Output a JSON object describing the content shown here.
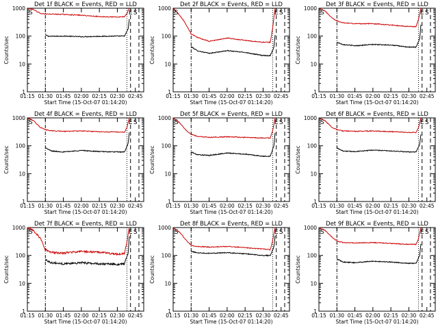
{
  "colors": {
    "events": "#000000",
    "lld": "#cc0000",
    "axes": "#000000",
    "background": "#ffffff"
  },
  "chart_data": [
    {
      "type": "line",
      "title": "Det 1f BLACK = Events, RED = LLD",
      "xlabel": "Start Time (15-Oct-07 01:14:20)",
      "ylabel": "Counts/sec",
      "yscale": "log",
      "ylim": [
        1,
        1000
      ],
      "xlim": [
        "01:15",
        "02:52"
      ],
      "x_ticks": [
        "01:15",
        "01:30",
        "01:45",
        "02:00",
        "02:15",
        "02:30",
        "02:45"
      ],
      "y_ticks": [
        "1",
        "10",
        "100",
        "1000"
      ],
      "markers": [
        {
          "label": "S",
          "x": "01:15"
        },
        {
          "label": "E",
          "x": "02:41"
        },
        {
          "label": "S",
          "x": "02:45"
        }
      ],
      "vlines": [
        {
          "x": "01:30",
          "style": "dash-dot"
        },
        {
          "x": "02:38",
          "style": "dotted"
        },
        {
          "x": "02:41",
          "style": "dashed"
        },
        {
          "x": "02:48",
          "style": "dashed"
        }
      ],
      "series": [
        {
          "name": "Events",
          "color": "#000000",
          "x": [
            "01:30",
            "01:33",
            "01:45",
            "02:00",
            "02:15",
            "02:30",
            "02:36",
            "02:39",
            "02:40"
          ],
          "y": [
            110,
            98,
            100,
            95,
            98,
            100,
            100,
            180,
            400
          ]
        },
        {
          "name": "LLD",
          "color": "#cc0000",
          "x": [
            "01:15",
            "01:20",
            "01:26",
            "01:30",
            "01:45",
            "02:00",
            "02:15",
            "02:30",
            "02:36",
            "02:38",
            "02:40"
          ],
          "y": [
            1000,
            900,
            650,
            620,
            600,
            560,
            500,
            480,
            500,
            650,
            1000
          ]
        }
      ]
    },
    {
      "type": "line",
      "title": "Det 2f BLACK = Events, RED = LLD",
      "xlabel": "Start Time (15-Oct-07 01:14:20)",
      "ylabel": "Counts/sec",
      "yscale": "log",
      "ylim": [
        1,
        1000
      ],
      "xlim": [
        "01:15",
        "02:52"
      ],
      "x_ticks": [
        "01:15",
        "01:30",
        "01:45",
        "02:00",
        "02:15",
        "02:30",
        "02:45"
      ],
      "y_ticks": [
        "1",
        "10",
        "100",
        "1000"
      ],
      "markers": [
        {
          "label": "S",
          "x": "01:15"
        },
        {
          "label": "E",
          "x": "02:41"
        },
        {
          "label": "S",
          "x": "02:45"
        }
      ],
      "vlines": [
        {
          "x": "01:30",
          "style": "dash-dot"
        },
        {
          "x": "02:38",
          "style": "dotted"
        },
        {
          "x": "02:41",
          "style": "dashed"
        },
        {
          "x": "02:48",
          "style": "dashed"
        }
      ],
      "series": [
        {
          "name": "Events",
          "color": "#000000",
          "x": [
            "01:30",
            "01:35",
            "01:45",
            "02:00",
            "02:15",
            "02:30",
            "02:36",
            "02:39",
            "02:40"
          ],
          "y": [
            42,
            30,
            24,
            30,
            26,
            20,
            20,
            40,
            110
          ]
        },
        {
          "name": "LLD",
          "color": "#cc0000",
          "x": [
            "01:15",
            "01:20",
            "01:25",
            "01:30",
            "01:35",
            "01:45",
            "02:00",
            "02:15",
            "02:30",
            "02:36",
            "02:38",
            "02:40"
          ],
          "y": [
            1000,
            600,
            300,
            120,
            90,
            65,
            85,
            70,
            60,
            60,
            200,
            1000
          ]
        }
      ]
    },
    {
      "type": "line",
      "title": "Det 3f BLACK = Events, RED = LLD",
      "xlabel": "Start Time (15-Oct-07 01:14:20)",
      "ylabel": "Counts/sec",
      "yscale": "log",
      "ylim": [
        1,
        1000
      ],
      "xlim": [
        "01:15",
        "02:52"
      ],
      "x_ticks": [
        "01:15",
        "01:30",
        "01:45",
        "02:00",
        "02:15",
        "02:30",
        "02:45"
      ],
      "y_ticks": [
        "1",
        "10",
        "100",
        "1000"
      ],
      "markers": [
        {
          "label": "S",
          "x": "01:15"
        },
        {
          "label": "E",
          "x": "02:41"
        },
        {
          "label": "S",
          "x": "02:45"
        }
      ],
      "vlines": [
        {
          "x": "01:30",
          "style": "dash-dot"
        },
        {
          "x": "02:38",
          "style": "dotted"
        },
        {
          "x": "02:41",
          "style": "dashed"
        },
        {
          "x": "02:48",
          "style": "dashed"
        }
      ],
      "series": [
        {
          "name": "Events",
          "color": "#000000",
          "x": [
            "01:30",
            "01:35",
            "01:45",
            "02:00",
            "02:15",
            "02:30",
            "02:36",
            "02:39",
            "02:40"
          ],
          "y": [
            60,
            50,
            45,
            50,
            48,
            40,
            40,
            80,
            250
          ]
        },
        {
          "name": "LLD",
          "color": "#cc0000",
          "x": [
            "01:15",
            "01:20",
            "01:26",
            "01:30",
            "01:35",
            "01:45",
            "02:00",
            "02:15",
            "02:30",
            "02:36",
            "02:38",
            "02:40"
          ],
          "y": [
            1000,
            800,
            450,
            350,
            300,
            280,
            280,
            250,
            220,
            220,
            400,
            1000
          ]
        }
      ]
    },
    {
      "type": "line",
      "title": "Det 4f BLACK = Events, RED = LLD",
      "xlabel": "Start Time (15-Oct-07 01:14:20)",
      "ylabel": "Counts/sec",
      "yscale": "log",
      "ylim": [
        1,
        1000
      ],
      "xlim": [
        "01:15",
        "02:52"
      ],
      "x_ticks": [
        "01:15",
        "01:30",
        "01:45",
        "02:00",
        "02:15",
        "02:30",
        "02:45"
      ],
      "y_ticks": [
        "1",
        "10",
        "100",
        "1000"
      ],
      "markers": [
        {
          "label": "S",
          "x": "01:15"
        },
        {
          "label": "E",
          "x": "02:41"
        },
        {
          "label": "S",
          "x": "02:45"
        }
      ],
      "vlines": [
        {
          "x": "01:30",
          "style": "dash-dot"
        },
        {
          "x": "02:38",
          "style": "dotted"
        },
        {
          "x": "02:41",
          "style": "dashed"
        },
        {
          "x": "02:48",
          "style": "dashed"
        }
      ],
      "series": [
        {
          "name": "Events",
          "color": "#000000",
          "x": [
            "01:30",
            "01:35",
            "01:45",
            "02:00",
            "02:15",
            "02:30",
            "02:36",
            "02:39",
            "02:40"
          ],
          "y": [
            85,
            65,
            60,
            68,
            62,
            60,
            60,
            120,
            300
          ]
        },
        {
          "name": "LLD",
          "color": "#cc0000",
          "x": [
            "01:15",
            "01:20",
            "01:26",
            "01:30",
            "01:35",
            "01:45",
            "02:00",
            "02:15",
            "02:30",
            "02:36",
            "02:38",
            "02:40"
          ],
          "y": [
            1000,
            800,
            450,
            380,
            340,
            330,
            340,
            320,
            310,
            310,
            450,
            1000
          ]
        }
      ]
    },
    {
      "type": "line",
      "title": "Det 5f BLACK = Events, RED = LLD",
      "xlabel": "Start Time (15-Oct-07 01:14:20)",
      "ylabel": "Counts/sec",
      "yscale": "log",
      "ylim": [
        1,
        1000
      ],
      "xlim": [
        "01:15",
        "02:52"
      ],
      "x_ticks": [
        "01:15",
        "01:30",
        "01:45",
        "02:00",
        "02:15",
        "02:30",
        "02:45"
      ],
      "y_ticks": [
        "1",
        "10",
        "100",
        "1000"
      ],
      "markers": [
        {
          "label": "S",
          "x": "01:15"
        },
        {
          "label": "E",
          "x": "02:41"
        },
        {
          "label": "S",
          "x": "02:45"
        }
      ],
      "vlines": [
        {
          "x": "01:30",
          "style": "dash-dot"
        },
        {
          "x": "02:38",
          "style": "dotted"
        },
        {
          "x": "02:41",
          "style": "dashed"
        },
        {
          "x": "02:48",
          "style": "dashed"
        }
      ],
      "series": [
        {
          "name": "Events",
          "color": "#000000",
          "x": [
            "01:30",
            "01:35",
            "01:45",
            "02:00",
            "02:15",
            "02:30",
            "02:36",
            "02:39",
            "02:40"
          ],
          "y": [
            60,
            48,
            45,
            55,
            50,
            42,
            42,
            100,
            300
          ]
        },
        {
          "name": "LLD",
          "color": "#cc0000",
          "x": [
            "01:15",
            "01:20",
            "01:26",
            "01:30",
            "01:35",
            "01:45",
            "02:00",
            "02:15",
            "02:30",
            "02:36",
            "02:38",
            "02:40"
          ],
          "y": [
            1000,
            700,
            350,
            260,
            220,
            200,
            210,
            200,
            190,
            190,
            350,
            1000
          ]
        }
      ]
    },
    {
      "type": "line",
      "title": "Det 6f BLACK = Events, RED = LLD",
      "xlabel": "Start Time (15-Oct-07 01:14:20)",
      "ylabel": "Counts/sec",
      "yscale": "log",
      "ylim": [
        1,
        1000
      ],
      "xlim": [
        "01:15",
        "02:52"
      ],
      "x_ticks": [
        "01:15",
        "01:30",
        "01:45",
        "02:00",
        "02:15",
        "02:30",
        "02:45"
      ],
      "y_ticks": [
        "1",
        "10",
        "100",
        "1000"
      ],
      "markers": [
        {
          "label": "S",
          "x": "01:15"
        },
        {
          "label": "E",
          "x": "02:41"
        },
        {
          "label": "S",
          "x": "02:45"
        }
      ],
      "vlines": [
        {
          "x": "01:30",
          "style": "dash-dot"
        },
        {
          "x": "02:38",
          "style": "dotted"
        },
        {
          "x": "02:41",
          "style": "dashed"
        },
        {
          "x": "02:48",
          "style": "dashed"
        }
      ],
      "series": [
        {
          "name": "Events",
          "color": "#000000",
          "x": [
            "01:30",
            "01:35",
            "01:45",
            "02:00",
            "02:15",
            "02:30",
            "02:36",
            "02:39",
            "02:40"
          ],
          "y": [
            85,
            65,
            62,
            70,
            65,
            60,
            60,
            110,
            250
          ]
        },
        {
          "name": "LLD",
          "color": "#cc0000",
          "x": [
            "01:15",
            "01:20",
            "01:26",
            "01:30",
            "01:35",
            "01:45",
            "02:00",
            "02:15",
            "02:30",
            "02:36",
            "02:38",
            "02:40"
          ],
          "y": [
            1000,
            800,
            450,
            380,
            340,
            330,
            340,
            320,
            300,
            300,
            450,
            1000
          ]
        }
      ]
    },
    {
      "type": "line",
      "title": "Det 7f BLACK = Events, RED = LLD",
      "xlabel": "Start Time (15-Oct-07 01:14:20)",
      "ylabel": "Counts/sec",
      "yscale": "log",
      "ylim": [
        1,
        1000
      ],
      "xlim": [
        "01:15",
        "02:52"
      ],
      "x_ticks": [
        "01:15",
        "01:30",
        "01:45",
        "02:00",
        "02:15",
        "02:30",
        "02:45"
      ],
      "y_ticks": [
        "1",
        "10",
        "100",
        "1000"
      ],
      "markers": [
        {
          "label": "S",
          "x": "01:15"
        },
        {
          "label": "E",
          "x": "02:41"
        },
        {
          "label": "S",
          "x": "02:45"
        }
      ],
      "vlines": [
        {
          "x": "01:30",
          "style": "dash-dot"
        },
        {
          "x": "02:38",
          "style": "dotted"
        },
        {
          "x": "02:41",
          "style": "dashed"
        },
        {
          "x": "02:48",
          "style": "dashed"
        }
      ],
      "series": [
        {
          "name": "Events",
          "color": "#000000",
          "x": [
            "01:30",
            "01:35",
            "01:45",
            "02:00",
            "02:15",
            "02:30",
            "02:36",
            "02:39",
            "02:40"
          ],
          "y": [
            70,
            55,
            50,
            55,
            50,
            48,
            50,
            120,
            500
          ]
        },
        {
          "name": "LLD",
          "color": "#cc0000",
          "x": [
            "01:15",
            "01:20",
            "01:26",
            "01:30",
            "01:35",
            "01:45",
            "02:00",
            "02:15",
            "02:30",
            "02:36",
            "02:38",
            "02:40"
          ],
          "y": [
            1000,
            800,
            400,
            160,
            130,
            120,
            140,
            130,
            110,
            120,
            300,
            1000
          ]
        }
      ]
    },
    {
      "type": "line",
      "title": "Det 8f BLACK = Events, RED = LLD",
      "xlabel": "Start Time (15-Oct-07 01:14:20)",
      "ylabel": "Counts/sec",
      "yscale": "log",
      "ylim": [
        1,
        1000
      ],
      "xlim": [
        "01:15",
        "02:52"
      ],
      "x_ticks": [
        "01:15",
        "01:30",
        "01:45",
        "02:00",
        "02:15",
        "02:30",
        "02:45"
      ],
      "y_ticks": [
        "1",
        "10",
        "100",
        "1000"
      ],
      "markers": [
        {
          "label": "S",
          "x": "01:15"
        },
        {
          "label": "E",
          "x": "02:41"
        },
        {
          "label": "S",
          "x": "02:45"
        }
      ],
      "vlines": [
        {
          "x": "01:30",
          "style": "dash-dot"
        },
        {
          "x": "02:38",
          "style": "dotted"
        },
        {
          "x": "02:41",
          "style": "dashed"
        },
        {
          "x": "02:48",
          "style": "dashed"
        }
      ],
      "series": [
        {
          "name": "Events",
          "color": "#000000",
          "x": [
            "01:30",
            "01:35",
            "01:45",
            "02:00",
            "02:15",
            "02:30",
            "02:36",
            "02:39",
            "02:40"
          ],
          "y": [
            140,
            125,
            120,
            125,
            115,
            100,
            100,
            200,
            500
          ]
        },
        {
          "name": "LLD",
          "color": "#cc0000",
          "x": [
            "01:15",
            "01:20",
            "01:26",
            "01:30",
            "01:35",
            "01:45",
            "02:00",
            "02:15",
            "02:30",
            "02:36",
            "02:38",
            "02:40"
          ],
          "y": [
            1000,
            700,
            350,
            230,
            210,
            200,
            210,
            190,
            170,
            160,
            350,
            1000
          ]
        }
      ]
    },
    {
      "type": "line",
      "title": "Det 9f BLACK = Events, RED = LLD",
      "xlabel": "Start Time (15-Oct-07 01:14:20)",
      "ylabel": "Counts/sec",
      "yscale": "log",
      "ylim": [
        1,
        1000
      ],
      "xlim": [
        "01:15",
        "02:52"
      ],
      "x_ticks": [
        "01:15",
        "01:30",
        "01:45",
        "02:00",
        "02:15",
        "02:30",
        "02:45"
      ],
      "y_ticks": [
        "1",
        "10",
        "100",
        "1000"
      ],
      "markers": [
        {
          "label": "S",
          "x": "01:15"
        },
        {
          "label": "E",
          "x": "02:41"
        },
        {
          "label": "S",
          "x": "02:45"
        }
      ],
      "vlines": [
        {
          "x": "01:30",
          "style": "dash-dot"
        },
        {
          "x": "02:38",
          "style": "dotted"
        },
        {
          "x": "02:41",
          "style": "dashed"
        },
        {
          "x": "02:48",
          "style": "dashed"
        }
      ],
      "series": [
        {
          "name": "Events",
          "color": "#000000",
          "x": [
            "01:30",
            "01:35",
            "01:45",
            "02:00",
            "02:15",
            "02:30",
            "02:36",
            "02:39",
            "02:40"
          ],
          "y": [
            75,
            58,
            55,
            62,
            58,
            52,
            52,
            100,
            260
          ]
        },
        {
          "name": "LLD",
          "color": "#cc0000",
          "x": [
            "01:15",
            "01:20",
            "01:26",
            "01:30",
            "01:35",
            "01:45",
            "02:00",
            "02:15",
            "02:30",
            "02:36",
            "02:38",
            "02:40"
          ],
          "y": [
            1000,
            800,
            450,
            330,
            290,
            280,
            290,
            270,
            250,
            250,
            400,
            1000
          ]
        }
      ]
    }
  ]
}
